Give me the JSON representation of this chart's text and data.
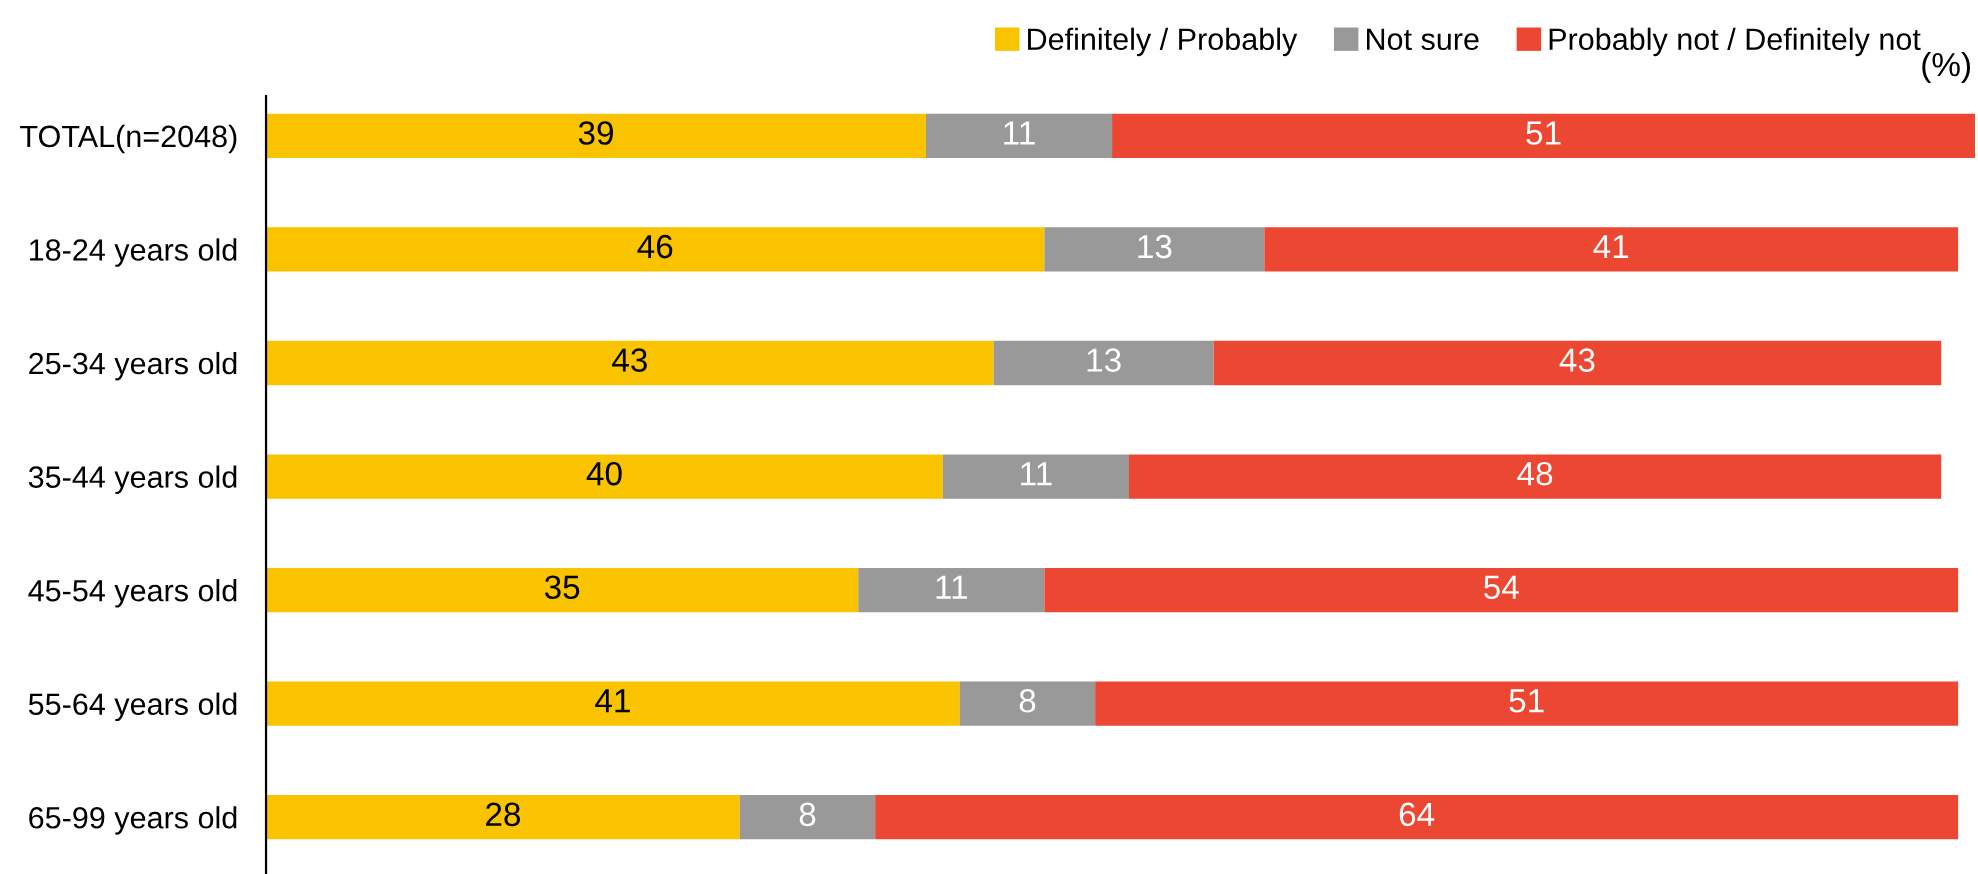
{
  "chart_data": {
    "type": "bar",
    "orientation": "horizontal",
    "stacked": true,
    "data_labels": true,
    "legend": "top right",
    "grid": false,
    "categories": [
      "TOTAL(n=2048)",
      "18-24 years old",
      "25-34 years old",
      "35-44 years old",
      "45-54 years old",
      "55-64 years old",
      "65-99 years old"
    ],
    "series": [
      {
        "name": "Definitely / Probably",
        "color": "#f9c300",
        "values": [
          39,
          46,
          43,
          40,
          35,
          41,
          28
        ]
      },
      {
        "name": "Not sure",
        "color": "#999999",
        "values": [
          11,
          13,
          13,
          11,
          11,
          8,
          8
        ]
      },
      {
        "name": "Probably not / Definitely not",
        "color": "#eb4733",
        "values": [
          51,
          41,
          43,
          48,
          54,
          51,
          64
        ]
      }
    ],
    "annotations": [
      "(%)"
    ]
  }
}
